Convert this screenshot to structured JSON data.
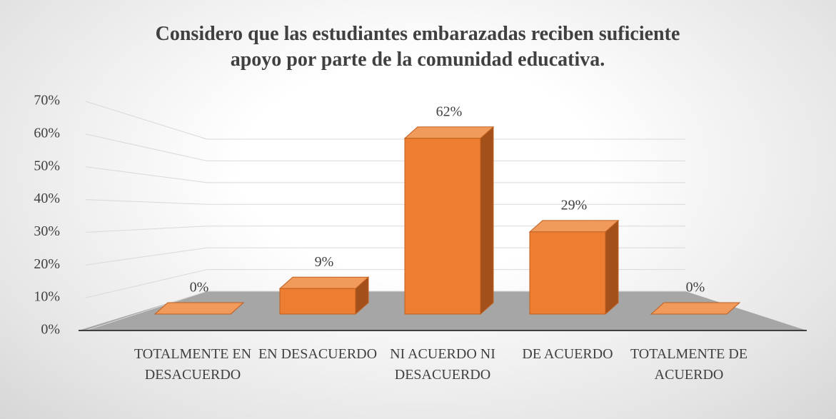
{
  "chart_data": {
    "type": "bar3d",
    "title": "Considero que las estudiantes embarazadas reciben suficiente apoyo por parte de la comunidad educativa.",
    "categories": [
      "TOTALMENTE EN DESACUERDO",
      "EN DESACUERDO",
      "NI ACUERDO NI DESACUERDO",
      "DE ACUERDO",
      "TOTALMENTE DE ACUERDO"
    ],
    "values": [
      0,
      9,
      62,
      29,
      0
    ],
    "value_labels": [
      "0%",
      "9%",
      "62%",
      "29%",
      "0%"
    ],
    "color": "#ed7d31",
    "ylim": [
      0,
      70
    ],
    "yticks": [
      {
        "value": 0,
        "label": "0%"
      },
      {
        "value": 10,
        "label": "10%"
      },
      {
        "value": 20,
        "label": "20%"
      },
      {
        "value": 30,
        "label": "30%"
      },
      {
        "value": 40,
        "label": "40%"
      },
      {
        "value": 50,
        "label": "50%"
      },
      {
        "value": 60,
        "label": "60%"
      },
      {
        "value": 70,
        "label": "70%"
      }
    ],
    "grid": true
  }
}
